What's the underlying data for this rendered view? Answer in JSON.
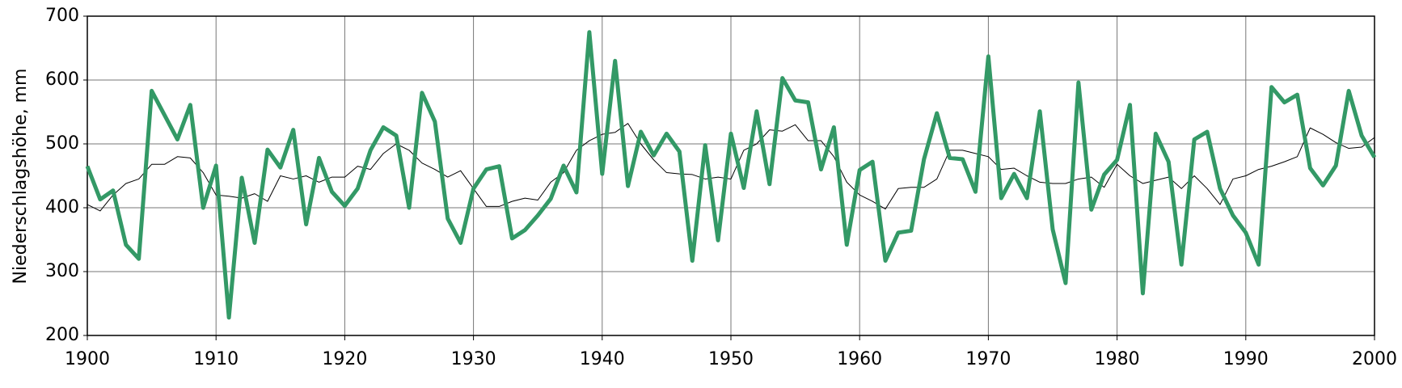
{
  "chart_data": {
    "type": "line",
    "y_label": "Niederschlagshöhe, mm",
    "x": [
      1900,
      1901,
      1902,
      1903,
      1904,
      1905,
      1906,
      1907,
      1908,
      1909,
      1910,
      1911,
      1912,
      1913,
      1914,
      1915,
      1916,
      1917,
      1918,
      1919,
      1920,
      1921,
      1922,
      1923,
      1924,
      1925,
      1926,
      1927,
      1928,
      1929,
      1930,
      1931,
      1932,
      1933,
      1934,
      1935,
      1936,
      1937,
      1938,
      1939,
      1940,
      1941,
      1942,
      1943,
      1944,
      1945,
      1946,
      1947,
      1948,
      1949,
      1950,
      1951,
      1952,
      1953,
      1954,
      1955,
      1956,
      1957,
      1958,
      1959,
      1960,
      1961,
      1962,
      1963,
      1964,
      1965,
      1966,
      1967,
      1968,
      1969,
      1970,
      1971,
      1972,
      1973,
      1974,
      1975,
      1976,
      1977,
      1978,
      1979,
      1980,
      1981,
      1982,
      1983,
      1984,
      1985,
      1986,
      1987,
      1988,
      1989,
      1990,
      1991,
      1992,
      1993,
      1994,
      1995,
      1996,
      1997,
      1998,
      1999,
      2000
    ],
    "series": [
      {
        "color": "#339966",
        "width": 5,
        "values": [
          465,
          413,
          427,
          342,
          320,
          583,
          545,
          507,
          561,
          400,
          466,
          228,
          447,
          345,
          491,
          463,
          522,
          374,
          478,
          425,
          403,
          430,
          490,
          526,
          513,
          400,
          580,
          535,
          383,
          345,
          430,
          460,
          465,
          352,
          365,
          388,
          414,
          466,
          424,
          675,
          453,
          630,
          434,
          519,
          482,
          516,
          488,
          317,
          498,
          349,
          516,
          431,
          551,
          437,
          603,
          568,
          565,
          460,
          526,
          342,
          459,
          472,
          317,
          361,
          364,
          476,
          548,
          478,
          476,
          425,
          637,
          415,
          453,
          415,
          551,
          366,
          282,
          596,
          397,
          452,
          475,
          561,
          266,
          516,
          472,
          311,
          507,
          519,
          430,
          388,
          361,
          311,
          589,
          565,
          577,
          462,
          435,
          466,
          583,
          513,
          479
        ]
      },
      {
        "color": "#000000",
        "width": 1,
        "values": [
          405,
          395,
          420,
          438,
          445,
          468,
          468,
          480,
          478,
          455,
          420,
          418,
          415,
          422,
          410,
          450,
          445,
          450,
          440,
          448,
          448,
          465,
          460,
          485,
          500,
          490,
          470,
          460,
          448,
          458,
          430,
          402,
          402,
          410,
          415,
          412,
          440,
          455,
          490,
          505,
          515,
          518,
          532,
          500,
          475,
          455,
          453,
          452,
          445,
          448,
          445,
          490,
          500,
          522,
          520,
          530,
          505,
          505,
          480,
          440,
          420,
          410,
          398,
          430,
          432,
          432,
          445,
          490,
          490,
          485,
          480,
          460,
          462,
          450,
          440,
          438,
          438,
          445,
          448,
          432,
          468,
          450,
          438,
          443,
          448,
          430,
          450,
          430,
          405,
          445,
          450,
          460,
          465,
          472,
          480,
          525,
          515,
          502,
          493,
          495,
          510
        ]
      }
    ],
    "xlim": [
      1900,
      2000
    ],
    "ylim": [
      200,
      700
    ],
    "xticks": [
      1900,
      1910,
      1920,
      1930,
      1940,
      1950,
      1960,
      1970,
      1980,
      1990,
      2000
    ],
    "yticks": [
      200,
      300,
      400,
      500,
      600,
      700
    ],
    "grid": true
  }
}
